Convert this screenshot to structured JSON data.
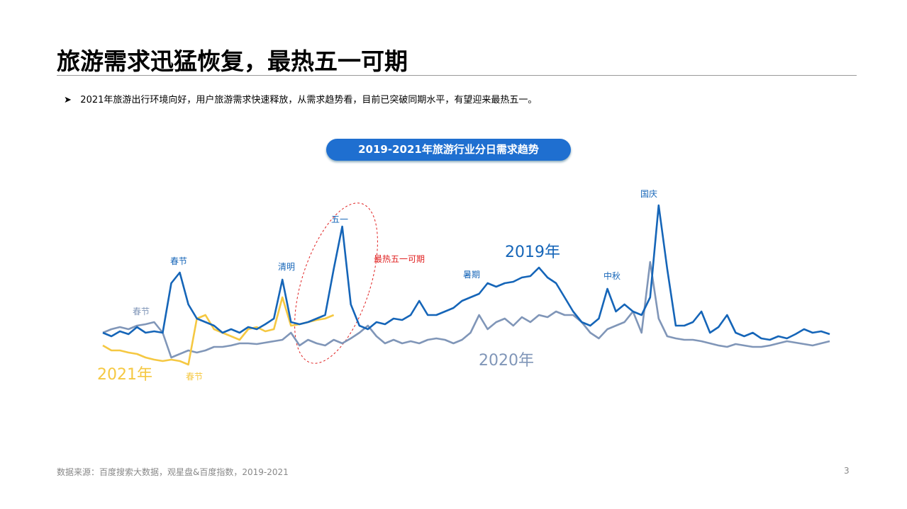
{
  "header": {
    "title": "旅游需求迅猛恢复，最热五一可期",
    "bullet": "2021年旅游出行环境向好，用户旅游需求快速释放，从需求趋势看，目前已突破同期水平，有望迎来最热五一。"
  },
  "chart_data": {
    "type": "line",
    "title": "2019-2021年旅游行业分日需求趋势",
    "series": [
      {
        "name": "2019年",
        "color": "#1565b8",
        "values": [
          70,
          65,
          72,
          68,
          78,
          70,
          72,
          70,
          140,
          155,
          110,
          90,
          85,
          80,
          70,
          75,
          70,
          78,
          75,
          82,
          90,
          145,
          85,
          82,
          85,
          90,
          95,
          160,
          220,
          110,
          80,
          75,
          85,
          82,
          90,
          88,
          95,
          115,
          95,
          95,
          100,
          105,
          115,
          120,
          125,
          140,
          135,
          140,
          142,
          148,
          150,
          162,
          148,
          140,
          120,
          100,
          85,
          80,
          90,
          132,
          100,
          110,
          100,
          95,
          120,
          250,
          160,
          80,
          80,
          85,
          100,
          70,
          78,
          95,
          70,
          65,
          70,
          62,
          60,
          65,
          62,
          68,
          75,
          70,
          72,
          68
        ]
      },
      {
        "name": "2020年",
        "color": "#8096b8",
        "values": [
          70,
          75,
          78,
          75,
          80,
          82,
          85,
          70,
          35,
          40,
          45,
          42,
          45,
          50,
          50,
          52,
          55,
          55,
          54,
          56,
          58,
          60,
          70,
          52,
          60,
          55,
          52,
          60,
          55,
          62,
          70,
          80,
          65,
          55,
          60,
          55,
          58,
          55,
          60,
          62,
          60,
          55,
          60,
          70,
          95,
          75,
          85,
          90,
          80,
          92,
          85,
          95,
          92,
          100,
          95,
          95,
          85,
          70,
          62,
          75,
          80,
          85,
          100,
          70,
          170,
          90,
          65,
          62,
          60,
          60,
          58,
          55,
          52,
          50,
          54,
          52,
          50,
          50,
          52,
          55,
          58,
          56,
          54,
          52,
          55,
          58
        ]
      },
      {
        "name": "2021年",
        "color": "#f5c842",
        "values": [
          52,
          45,
          45,
          42,
          40,
          35,
          32,
          30,
          32,
          30,
          25,
          90,
          95,
          75,
          70,
          65,
          60,
          75,
          78,
          72,
          75,
          120,
          80,
          82,
          85,
          88,
          90,
          95
        ]
      }
    ],
    "annotations": [
      "春节",
      "清明",
      "五一",
      "暑期",
      "中秋",
      "国庆",
      "春节",
      "春节",
      "最热五一可期"
    ]
  },
  "footer": {
    "source": "数据来源：百度搜索大数据，观星盘&百度指数，2019-2021",
    "page": "3"
  }
}
